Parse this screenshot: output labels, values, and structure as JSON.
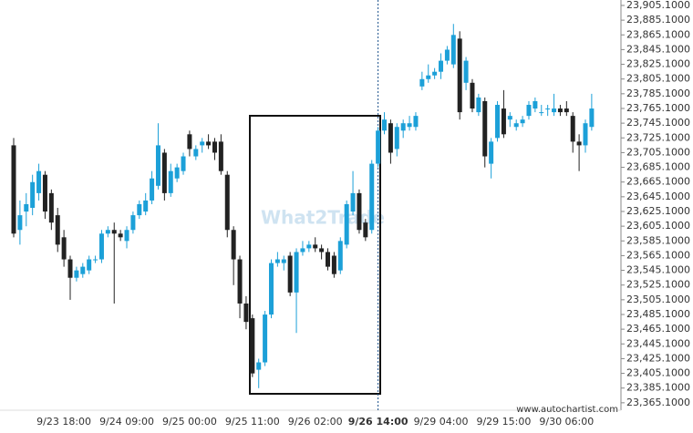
{
  "chart_data": {
    "type": "candlestick",
    "watermark": "What2Trade",
    "source": "www.autochartist.com",
    "up_color": "#1ca0d8",
    "down_color": "#222222",
    "categories": [
      null,
      null,
      null,
      null,
      null,
      null,
      null,
      null,
      "9/23 18:00",
      null,
      null,
      null,
      null,
      null,
      null,
      null,
      null,
      null,
      "9/24 09:00",
      null,
      null,
      null,
      null,
      null,
      null,
      null,
      null,
      null,
      "9/25 00:00",
      null,
      null,
      null,
      null,
      null,
      null,
      null,
      null,
      null,
      "9/25 11:00",
      null,
      null,
      null,
      null,
      null,
      null,
      null,
      null,
      null,
      "9/26 02:00",
      null,
      null,
      null,
      null,
      null,
      null,
      null,
      null,
      null,
      "9/26 14:00",
      null,
      null,
      null,
      null,
      null,
      null,
      null,
      null,
      null,
      "9/29 04:00",
      null,
      null,
      null,
      null,
      null,
      null,
      null,
      null,
      null,
      "9/29 15:00",
      null,
      null,
      null,
      null,
      null,
      null,
      null,
      null,
      null,
      "9/30 06:00",
      null,
      null,
      null,
      null
    ],
    "open": [
      23715,
      23600,
      23625,
      23630,
      23650,
      23675,
      23650,
      23620,
      23590,
      23560,
      23535,
      23540,
      23545,
      23560,
      23560,
      23595,
      23600,
      23595,
      23585,
      23600,
      23620,
      23625,
      23640,
      23660,
      23705,
      23650,
      23670,
      23680,
      23730,
      23700,
      23715,
      23720,
      23720,
      23720,
      23675,
      23600,
      23560,
      23500,
      23480,
      23410,
      23420,
      23485,
      23555,
      23555,
      23565,
      23515,
      23570,
      23575,
      23580,
      23575,
      23570,
      23565,
      23545,
      23580,
      23625,
      23650,
      23610,
      23600,
      23690,
      23735,
      23745,
      23710,
      23735,
      23740,
      23740,
      23795,
      23805,
      23810,
      23815,
      23830,
      23825,
      23860,
      23800,
      23800,
      23760,
      23775,
      23690,
      23725,
      23765,
      23750,
      23740,
      23745,
      23755,
      23765,
      23760,
      23765,
      23760,
      23765,
      23765,
      23755,
      23720,
      23715,
      23740
    ],
    "high": [
      23725,
      23640,
      23650,
      23675,
      23690,
      23680,
      23655,
      23630,
      23600,
      23565,
      23550,
      23555,
      23565,
      23565,
      23600,
      23605,
      23610,
      23600,
      23605,
      23625,
      23640,
      23650,
      23680,
      23745,
      23710,
      23690,
      23690,
      23705,
      23735,
      23715,
      23725,
      23730,
      23725,
      23730,
      23680,
      23605,
      23565,
      23510,
      23485,
      23425,
      23490,
      23560,
      23570,
      23565,
      23570,
      23575,
      23585,
      23585,
      23590,
      23580,
      23575,
      23570,
      23590,
      23640,
      23680,
      23655,
      23615,
      23695,
      23740,
      23760,
      23750,
      23745,
      23750,
      23755,
      23760,
      23815,
      23825,
      23820,
      23840,
      23850,
      23880,
      23870,
      23835,
      23805,
      23785,
      23780,
      23725,
      23775,
      23790,
      23760,
      23750,
      23755,
      23775,
      23780,
      23770,
      23770,
      23785,
      23770,
      23775,
      23760,
      23730,
      23750,
      23785
    ],
    "low": [
      23590,
      23580,
      23605,
      23620,
      23640,
      23615,
      23600,
      23570,
      23550,
      23505,
      23530,
      23535,
      23540,
      23555,
      23555,
      23590,
      23500,
      23585,
      23575,
      23595,
      23615,
      23620,
      23635,
      23655,
      23640,
      23645,
      23665,
      23675,
      23700,
      23695,
      23705,
      23710,
      23695,
      23675,
      23590,
      23525,
      23480,
      23465,
      23400,
      23385,
      23415,
      23480,
      23550,
      23545,
      23510,
      23460,
      23565,
      23570,
      23570,
      23560,
      23545,
      23535,
      23540,
      23575,
      23620,
      23595,
      23585,
      23595,
      23685,
      23730,
      23690,
      23700,
      23725,
      23735,
      23735,
      23790,
      23800,
      23805,
      23805,
      23825,
      23820,
      23750,
      23790,
      23760,
      23755,
      23685,
      23670,
      23720,
      23725,
      23740,
      23735,
      23740,
      23750,
      23760,
      23755,
      23755,
      23755,
      23755,
      23755,
      23705,
      23680,
      23705,
      23735
    ],
    "close": [
      23595,
      23620,
      23635,
      23665,
      23680,
      23625,
      23610,
      23580,
      23560,
      23535,
      23545,
      23550,
      23560,
      23560,
      23595,
      23600,
      23595,
      23590,
      23600,
      23620,
      23635,
      23640,
      23670,
      23715,
      23650,
      23680,
      23685,
      23700,
      23710,
      23710,
      23720,
      23715,
      23705,
      23680,
      23600,
      23560,
      23500,
      23475,
      23405,
      23420,
      23485,
      23555,
      23560,
      23560,
      23515,
      23570,
      23575,
      23580,
      23575,
      23570,
      23550,
      23540,
      23585,
      23635,
      23650,
      23600,
      23590,
      23690,
      23735,
      23750,
      23705,
      23740,
      23745,
      23745,
      23755,
      23805,
      23810,
      23815,
      23830,
      23845,
      23865,
      23760,
      23830,
      23765,
      23780,
      23700,
      23720,
      23770,
      23730,
      23755,
      23745,
      23750,
      23770,
      23775,
      23760,
      23765,
      23765,
      23760,
      23760,
      23720,
      23715,
      23745,
      23765
    ],
    "ylim": [
      23355,
      23912.5
    ],
    "yticks": [
      {
        "value": 23365.1,
        "label": "23,365.1000"
      },
      {
        "value": 23385.1,
        "label": "23,385.1000"
      },
      {
        "value": 23405.1,
        "label": "23,405.1000"
      },
      {
        "value": 23425.1,
        "label": "23,425.1000"
      },
      {
        "value": 23445.1,
        "label": "23,445.1000"
      },
      {
        "value": 23465.1,
        "label": "23,465.1000"
      },
      {
        "value": 23485.1,
        "label": "23,485.1000"
      },
      {
        "value": 23505.1,
        "label": "23,505.1000"
      },
      {
        "value": 23525.1,
        "label": "23,525.1000"
      },
      {
        "value": 23545.1,
        "label": "23,545.1000"
      },
      {
        "value": 23565.1,
        "label": "23,565.1000"
      },
      {
        "value": 23585.1,
        "label": "23,585.1000"
      },
      {
        "value": 23605.1,
        "label": "23,605.1000"
      },
      {
        "value": 23625.1,
        "label": "23,625.1000"
      },
      {
        "value": 23645.1,
        "label": "23,645.1000"
      },
      {
        "value": 23665.1,
        "label": "23,665.1000"
      },
      {
        "value": 23685.1,
        "label": "23,685.1000"
      },
      {
        "value": 23705.1,
        "label": "23,705.1000"
      },
      {
        "value": 23725.1,
        "label": "23,725.1000"
      },
      {
        "value": 23745.1,
        "label": "23,745.1000"
      },
      {
        "value": 23765.1,
        "label": "23,765.1000"
      },
      {
        "value": 23785.1,
        "label": "23,785.1000"
      },
      {
        "value": 23805.1,
        "label": "23,805.1000"
      },
      {
        "value": 23825.1,
        "label": "23,825.1000"
      },
      {
        "value": 23845.1,
        "label": "23,845.1000"
      },
      {
        "value": 23865.1,
        "label": "23,865.1000"
      },
      {
        "value": 23885.1,
        "label": "23,885.1000"
      },
      {
        "value": 23905.1,
        "label": "23,905.1000"
      }
    ]
  }
}
